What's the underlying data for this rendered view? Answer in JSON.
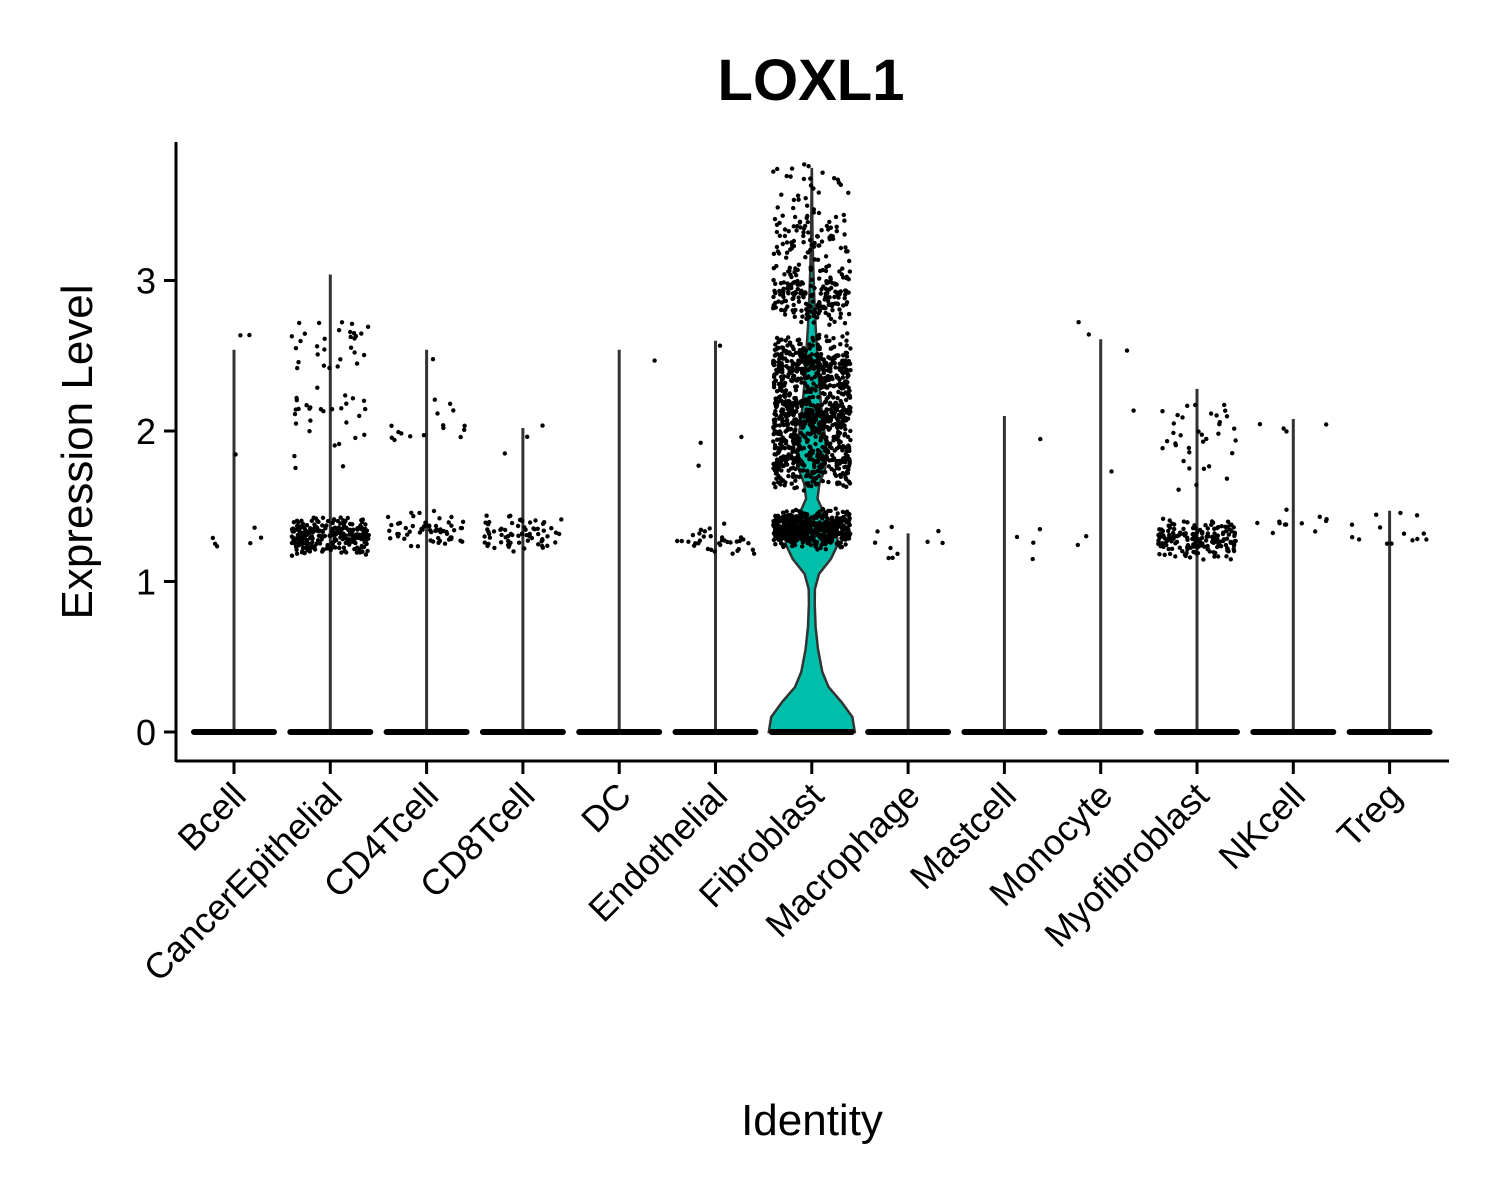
{
  "chart_data": {
    "type": "violin",
    "title": "LOXL1",
    "xlabel": "Identity",
    "ylabel": "Expression Level",
    "ylim": [
      -0.18,
      3.9
    ],
    "yticks": [
      0,
      1,
      2,
      3
    ],
    "fill_color": "#00BFAA",
    "point_color": "#000000",
    "grid": false,
    "legend": "none",
    "categories": [
      "Bcell",
      "CancerEpithelial",
      "CD4Tcell",
      "CD8Tcell",
      "DC",
      "Endothelial",
      "Fibroblast",
      "Macrophage",
      "Mastcell",
      "Monocyte",
      "Myofibroblast",
      "NKcell",
      "Treg"
    ],
    "violin_max": [
      2.54,
      3.04,
      2.54,
      2.02,
      2.54,
      2.6,
      3.74,
      1.32,
      2.1,
      2.61,
      2.28,
      2.08,
      1.47
    ],
    "expressing_points": [
      {
        "clusters": [
          [
            2.54,
            2
          ],
          [
            2.02,
            1
          ],
          [
            1.25,
            6
          ]
        ]
      },
      {
        "clusters": [
          [
            2.6,
            30
          ],
          [
            2.15,
            24
          ],
          [
            1.8,
            6
          ],
          [
            1.3,
            260
          ]
        ]
      },
      {
        "clusters": [
          [
            2.53,
            1
          ],
          [
            2.05,
            16
          ],
          [
            1.35,
            60
          ]
        ]
      },
      {
        "clusters": [
          [
            2.01,
            3
          ],
          [
            1.32,
            70
          ]
        ]
      },
      {
        "clusters": [
          [
            2.54,
            1
          ]
        ]
      },
      {
        "clusters": [
          [
            2.6,
            1
          ],
          [
            1.85,
            3
          ],
          [
            1.27,
            35
          ]
        ]
      },
      {
        "clusters": [
          [
            3.3,
            80
          ],
          [
            2.9,
            200
          ],
          [
            2.45,
            320
          ],
          [
            2.1,
            380
          ],
          [
            1.8,
            300
          ],
          [
            1.35,
            520
          ],
          [
            3.6,
            25
          ]
        ]
      },
      {
        "clusters": [
          [
            1.25,
            10
          ]
        ]
      },
      {
        "clusters": [
          [
            2.1,
            1
          ],
          [
            1.23,
            4
          ]
        ]
      },
      {
        "clusters": [
          [
            2.6,
            3
          ],
          [
            2.2,
            1
          ],
          [
            1.8,
            1
          ],
          [
            1.24,
            2
          ]
        ]
      },
      {
        "clusters": [
          [
            2.0,
            26
          ],
          [
            1.8,
            10
          ],
          [
            1.28,
            180
          ]
        ]
      },
      {
        "clusters": [
          [
            2.05,
            4
          ],
          [
            1.38,
            12
          ]
        ]
      },
      {
        "clusters": [
          [
            1.35,
            14
          ]
        ]
      }
    ],
    "fibroblast_density": [
      [
        0,
        0.9
      ],
      [
        0.1,
        0.85
      ],
      [
        0.2,
        0.62
      ],
      [
        0.3,
        0.35
      ],
      [
        0.4,
        0.22
      ],
      [
        0.55,
        0.13
      ],
      [
        0.7,
        0.08
      ],
      [
        0.85,
        0.06
      ],
      [
        0.95,
        0.065
      ],
      [
        1.05,
        0.15
      ],
      [
        1.15,
        0.4
      ],
      [
        1.25,
        0.55
      ],
      [
        1.35,
        0.5
      ],
      [
        1.45,
        0.26
      ],
      [
        1.55,
        0.12
      ],
      [
        1.65,
        0.16
      ],
      [
        1.75,
        0.28
      ],
      [
        1.85,
        0.3
      ],
      [
        1.95,
        0.28
      ],
      [
        2.05,
        0.24
      ],
      [
        2.15,
        0.2
      ],
      [
        2.3,
        0.16
      ],
      [
        2.5,
        0.12
      ],
      [
        2.7,
        0.08
      ],
      [
        2.9,
        0.05
      ],
      [
        3.1,
        0.03
      ],
      [
        3.3,
        0.015
      ],
      [
        3.5,
        0.008
      ],
      [
        3.74,
        0.003
      ]
    ]
  }
}
